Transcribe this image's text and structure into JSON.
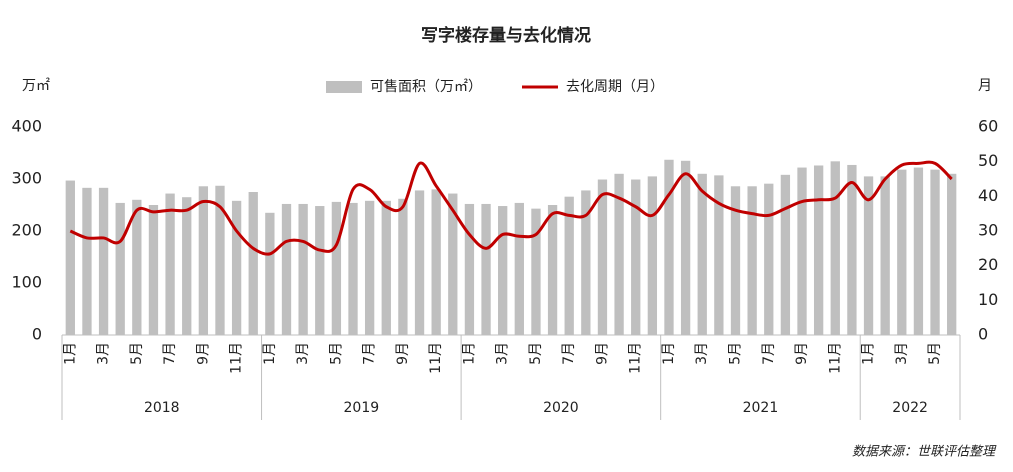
{
  "chart_data": {
    "type": "combo",
    "title": "写字楼存量与去化情况",
    "y_label": "万㎡",
    "y2_label": "月",
    "source": "数据来源：世联评估整理",
    "groups": [
      {
        "name": "2018",
        "categories": [
          "1月",
          null,
          "3月",
          null,
          "5月",
          null,
          "7月",
          null,
          "9月",
          null,
          "11月",
          null
        ]
      },
      {
        "name": "2019",
        "categories": [
          "1月",
          null,
          "3月",
          null,
          "5月",
          null,
          "7月",
          null,
          "9月",
          null,
          "11月",
          null
        ]
      },
      {
        "name": "2020",
        "categories": [
          "1月",
          null,
          "3月",
          null,
          "5月",
          null,
          "7月",
          null,
          "9月",
          null,
          "11月",
          null
        ]
      },
      {
        "name": "2021",
        "categories": [
          "1月",
          null,
          "3月",
          null,
          "5月",
          null,
          "7月",
          null,
          "9月",
          null,
          "11月",
          null
        ]
      },
      {
        "name": "2022",
        "categories": [
          "1月",
          null,
          "3月",
          null,
          "5月",
          null
        ]
      }
    ],
    "series": [
      {
        "name": "可售面积（万㎡）",
        "type": "bar",
        "color": "#bfbfbf",
        "values": [
          297,
          283,
          283,
          254,
          260,
          250,
          272,
          265,
          286,
          287,
          258,
          275,
          235,
          252,
          252,
          248,
          256,
          254,
          258,
          258,
          262,
          278,
          280,
          272,
          252,
          252,
          248,
          254,
          243,
          250,
          266,
          278,
          299,
          310,
          299,
          305,
          337,
          335,
          310,
          307,
          286,
          286,
          291,
          308,
          322,
          326,
          334,
          327,
          305,
          305,
          318,
          322,
          318,
          310
        ]
      },
      {
        "name": "去化周期（月）",
        "type": "line",
        "axis": "y2",
        "color": "#c00000",
        "values": [
          30,
          28,
          28,
          27,
          36,
          35.5,
          36,
          36,
          38.5,
          37,
          30,
          25,
          23.4,
          27,
          27,
          24.5,
          26,
          42,
          42,
          37,
          37,
          49.5,
          43,
          36,
          29,
          25,
          29,
          28.5,
          29,
          35,
          34.5,
          34.5,
          40.5,
          39.5,
          37,
          34.5,
          40.5,
          46.5,
          41.5,
          38,
          36,
          35,
          34.5,
          36.5,
          38.5,
          39,
          39.5,
          44,
          39,
          45,
          49,
          49.5,
          49.5,
          45
        ]
      }
    ],
    "ylim": [
      0,
      400
    ],
    "yticks": [
      0,
      100,
      200,
      300,
      400
    ],
    "y2lim": [
      0,
      60
    ],
    "y2ticks": [
      0,
      10,
      20,
      30,
      40,
      50,
      60
    ]
  }
}
